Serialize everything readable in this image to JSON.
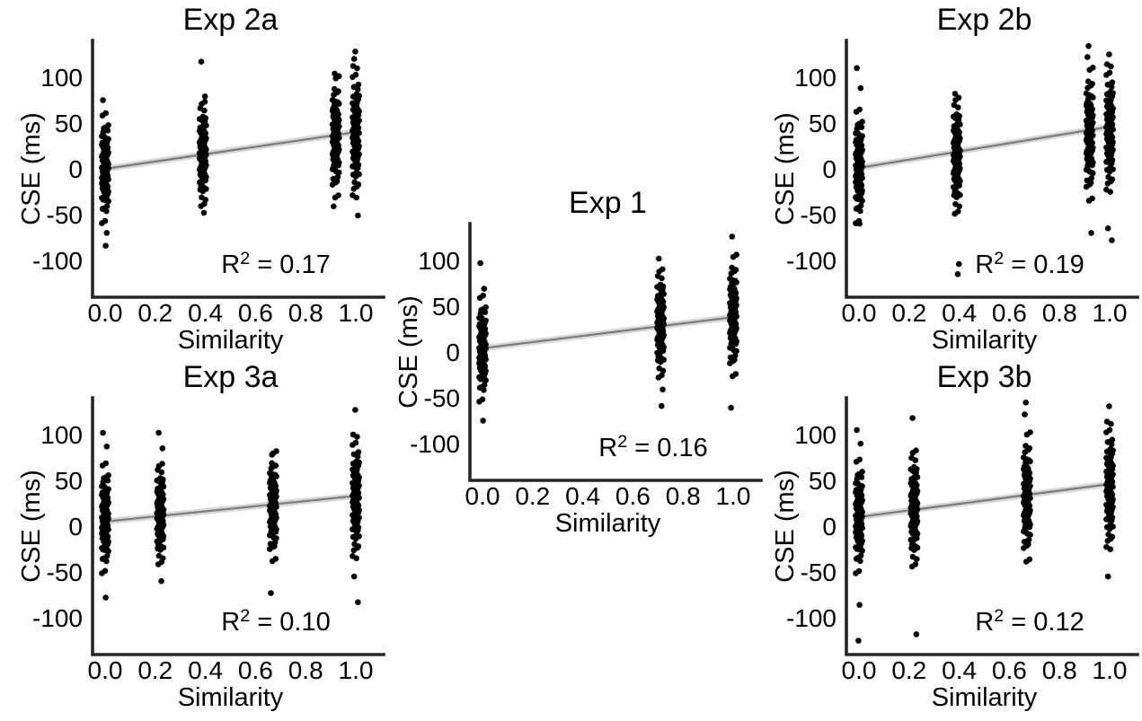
{
  "figure": {
    "background": "#ffffff",
    "point_color": "#000000",
    "regression_line_color": "#7d7d7d",
    "confidence_band_color": "#d8d8d8",
    "axis_color": "#262626",
    "text_color": "#000000",
    "xlabel": "Similarity",
    "ylabel": "CSE (ms)",
    "x_tick_values": [
      0,
      0.2,
      0.4,
      0.6,
      0.8,
      1.0
    ],
    "x_tick_labels": [
      "0.0",
      "0.2",
      "0.4",
      "0.6",
      "0.8",
      "1.0"
    ],
    "y_tick_values": [
      100,
      50,
      0,
      -50,
      -100
    ],
    "y_tick_labels": [
      "100",
      "50",
      "0",
      "-50",
      "-100"
    ],
    "r2_prefix": "R",
    "r2_sup": "2",
    "r2_eq": " = "
  },
  "jitter_profile": [
    -2.11,
    -1.76,
    -1.55,
    -1.4,
    -1.27,
    -1.16,
    -1.06,
    -0.97,
    -0.88,
    -0.8,
    -0.72,
    -0.64,
    -0.57,
    -0.5,
    -0.43,
    -0.36,
    -0.29,
    -0.23,
    -0.16,
    -0.1,
    -0.03,
    0.03,
    0.1,
    0.16,
    0.23,
    0.29,
    0.36,
    0.43,
    0.5,
    0.57,
    0.64,
    0.72,
    0.8,
    0.88,
    0.97,
    1.06,
    1.16,
    1.27,
    1.4,
    1.55,
    1.76,
    2.11
  ],
  "chart_data": [
    {
      "id": "exp1",
      "type": "scatter",
      "title": "Exp 1",
      "xlabel": "Similarity",
      "ylabel": "CSE (ms)",
      "r2": "0.16",
      "xlim": [
        -0.07,
        1.07
      ],
      "ylim": [
        -140,
        140
      ],
      "grid": false,
      "legend": false,
      "regression": {
        "x0": 0,
        "y0": 4,
        "x1": 1,
        "y1": 38
      },
      "strips": [
        {
          "x": 0.0,
          "mean": 3,
          "sd": 26,
          "outliers": [
            97,
            69,
            -75
          ]
        },
        {
          "x": 0.71,
          "mean": 30,
          "sd": 28,
          "outliers": [
            102,
            -41,
            -59
          ]
        },
        {
          "x": 1.0,
          "mean": 38,
          "sd": 30,
          "outliers": [
            126,
            -61
          ]
        }
      ]
    },
    {
      "id": "exp2a",
      "type": "scatter",
      "title": "Exp 2a",
      "xlabel": "Similarity",
      "ylabel": "CSE (ms)",
      "r2": "0.17",
      "xlim": [
        -0.07,
        1.07
      ],
      "ylim": [
        -140,
        140
      ],
      "grid": false,
      "legend": false,
      "regression": {
        "x0": 0,
        "y0": 0,
        "x1": 1,
        "y1": 40
      },
      "strips": [
        {
          "x": 0.0,
          "mean": 0,
          "sd": 27,
          "outliers": [
            75,
            -70,
            -84
          ]
        },
        {
          "x": 0.39,
          "mean": 15,
          "sd": 27,
          "outliers": [
            117,
            79,
            -48
          ]
        },
        {
          "x": 0.92,
          "mean": 33,
          "sd": 30,
          "outliers": [
            104,
            -41
          ]
        },
        {
          "x": 1.0,
          "mean": 38,
          "sd": 34,
          "outliers": [
            128,
            120,
            -51
          ]
        }
      ]
    },
    {
      "id": "exp2b",
      "type": "scatter",
      "title": "Exp 2b",
      "xlabel": "Similarity",
      "ylabel": "CSE (ms)",
      "r2": "0.19",
      "xlim": [
        -0.07,
        1.07
      ],
      "ylim": [
        -140,
        140
      ],
      "grid": false,
      "legend": false,
      "regression": {
        "x0": 0,
        "y0": 1,
        "x1": 1,
        "y1": 46
      },
      "strips": [
        {
          "x": 0.0,
          "mean": 2,
          "sd": 28,
          "outliers": [
            110,
            88,
            -60
          ]
        },
        {
          "x": 0.39,
          "mean": 13,
          "sd": 30,
          "outliers": [
            82,
            -104,
            -115
          ]
        },
        {
          "x": 0.92,
          "mean": 36,
          "sd": 33,
          "outliers": [
            134,
            122,
            -70
          ]
        },
        {
          "x": 1.0,
          "mean": 42,
          "sd": 33,
          "outliers": [
            125,
            -65,
            -78
          ]
        }
      ]
    },
    {
      "id": "exp3a",
      "type": "scatter",
      "title": "Exp 3a",
      "xlabel": "Similarity",
      "ylabel": "CSE (ms)",
      "r2": "0.10",
      "xlim": [
        -0.07,
        1.07
      ],
      "ylim": [
        -140,
        140
      ],
      "grid": false,
      "legend": false,
      "regression": {
        "x0": 0,
        "y0": 5,
        "x1": 1,
        "y1": 33
      },
      "strips": [
        {
          "x": 0.0,
          "mean": 8,
          "sd": 27,
          "outliers": [
            102,
            87,
            -78
          ]
        },
        {
          "x": 0.22,
          "mean": 12,
          "sd": 26,
          "outliers": [
            102,
            85,
            -60
          ]
        },
        {
          "x": 0.67,
          "mean": 20,
          "sd": 27,
          "outliers": [
            78,
            -73
          ]
        },
        {
          "x": 1.0,
          "mean": 30,
          "sd": 32,
          "outliers": [
            127,
            -55,
            -83
          ]
        }
      ]
    },
    {
      "id": "exp3b",
      "type": "scatter",
      "title": "Exp 3b",
      "xlabel": "Similarity",
      "ylabel": "CSE (ms)",
      "r2": "0.12",
      "xlim": [
        -0.07,
        1.07
      ],
      "ylim": [
        -140,
        140
      ],
      "grid": false,
      "legend": false,
      "regression": {
        "x0": 0,
        "y0": 10,
        "x1": 1,
        "y1": 46
      },
      "strips": [
        {
          "x": 0.0,
          "mean": 10,
          "sd": 28,
          "outliers": [
            105,
            90,
            -86,
            -125
          ]
        },
        {
          "x": 0.22,
          "mean": 18,
          "sd": 30,
          "outliers": [
            118,
            -118
          ]
        },
        {
          "x": 0.67,
          "mean": 30,
          "sd": 32,
          "outliers": [
            135,
            122
          ]
        },
        {
          "x": 1.0,
          "mean": 42,
          "sd": 33,
          "outliers": [
            131,
            -55
          ]
        }
      ]
    }
  ]
}
